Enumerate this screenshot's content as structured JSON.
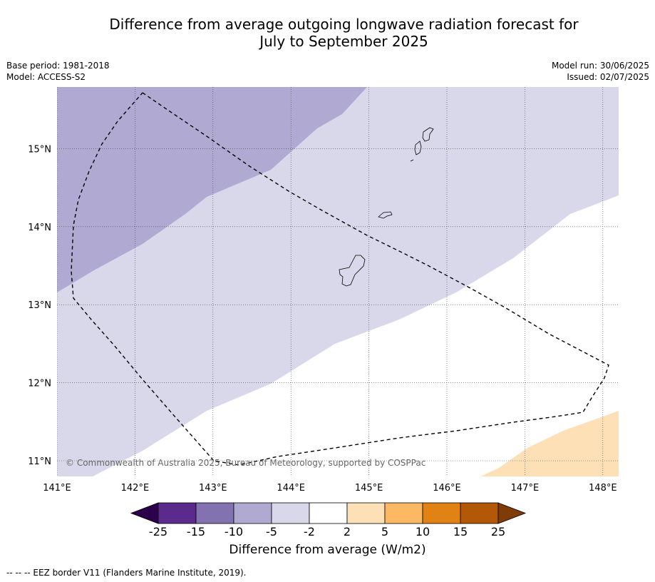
{
  "title": {
    "line1": "Difference from average outgoing longwave radiation forecast for",
    "line2": "July to September 2025"
  },
  "meta": {
    "base_period": "Base period: 1981-2018",
    "model": "Model: ACCESS-S2",
    "model_run": "Model run: 30/06/2025",
    "issued": "Issued: 02/07/2025"
  },
  "map": {
    "lon_range": [
      141.0,
      148.2
    ],
    "lat_range": [
      10.8,
      15.8
    ],
    "lon_ticks": [
      "141°E",
      "142°E",
      "143°E",
      "144°E",
      "145°E",
      "146°E",
      "147°E",
      "148°E"
    ],
    "lat_ticks": [
      "15°N",
      "14°N",
      "13°N",
      "12°N",
      "11°N"
    ],
    "copyright": "© Commonwealth of Australia 2025, Bureau of Meteorology, supported by COSPPac",
    "colors": {
      "minus10_minus5": "#b0aad2",
      "minus5_minus2": "#d8d8ea",
      "plus2_plus5": "#fde0b6"
    }
  },
  "colorbar": {
    "boundaries": [
      "-25",
      "-15",
      "-10",
      "-5",
      "-2",
      "2",
      "5",
      "10",
      "15",
      "25"
    ],
    "colors": [
      "#2d004b",
      "#5a2a8c",
      "#8272b0",
      "#b0aad2",
      "#d8d8ea",
      "#ffffff",
      "#fde0b6",
      "#fdb863",
      "#e08214",
      "#b35806",
      "#7f3b08"
    ],
    "label": "Difference from average (W/m2)"
  },
  "footnote": "--  --  -- EEZ border V11 (Flanders Marine Institute, 2019)."
}
